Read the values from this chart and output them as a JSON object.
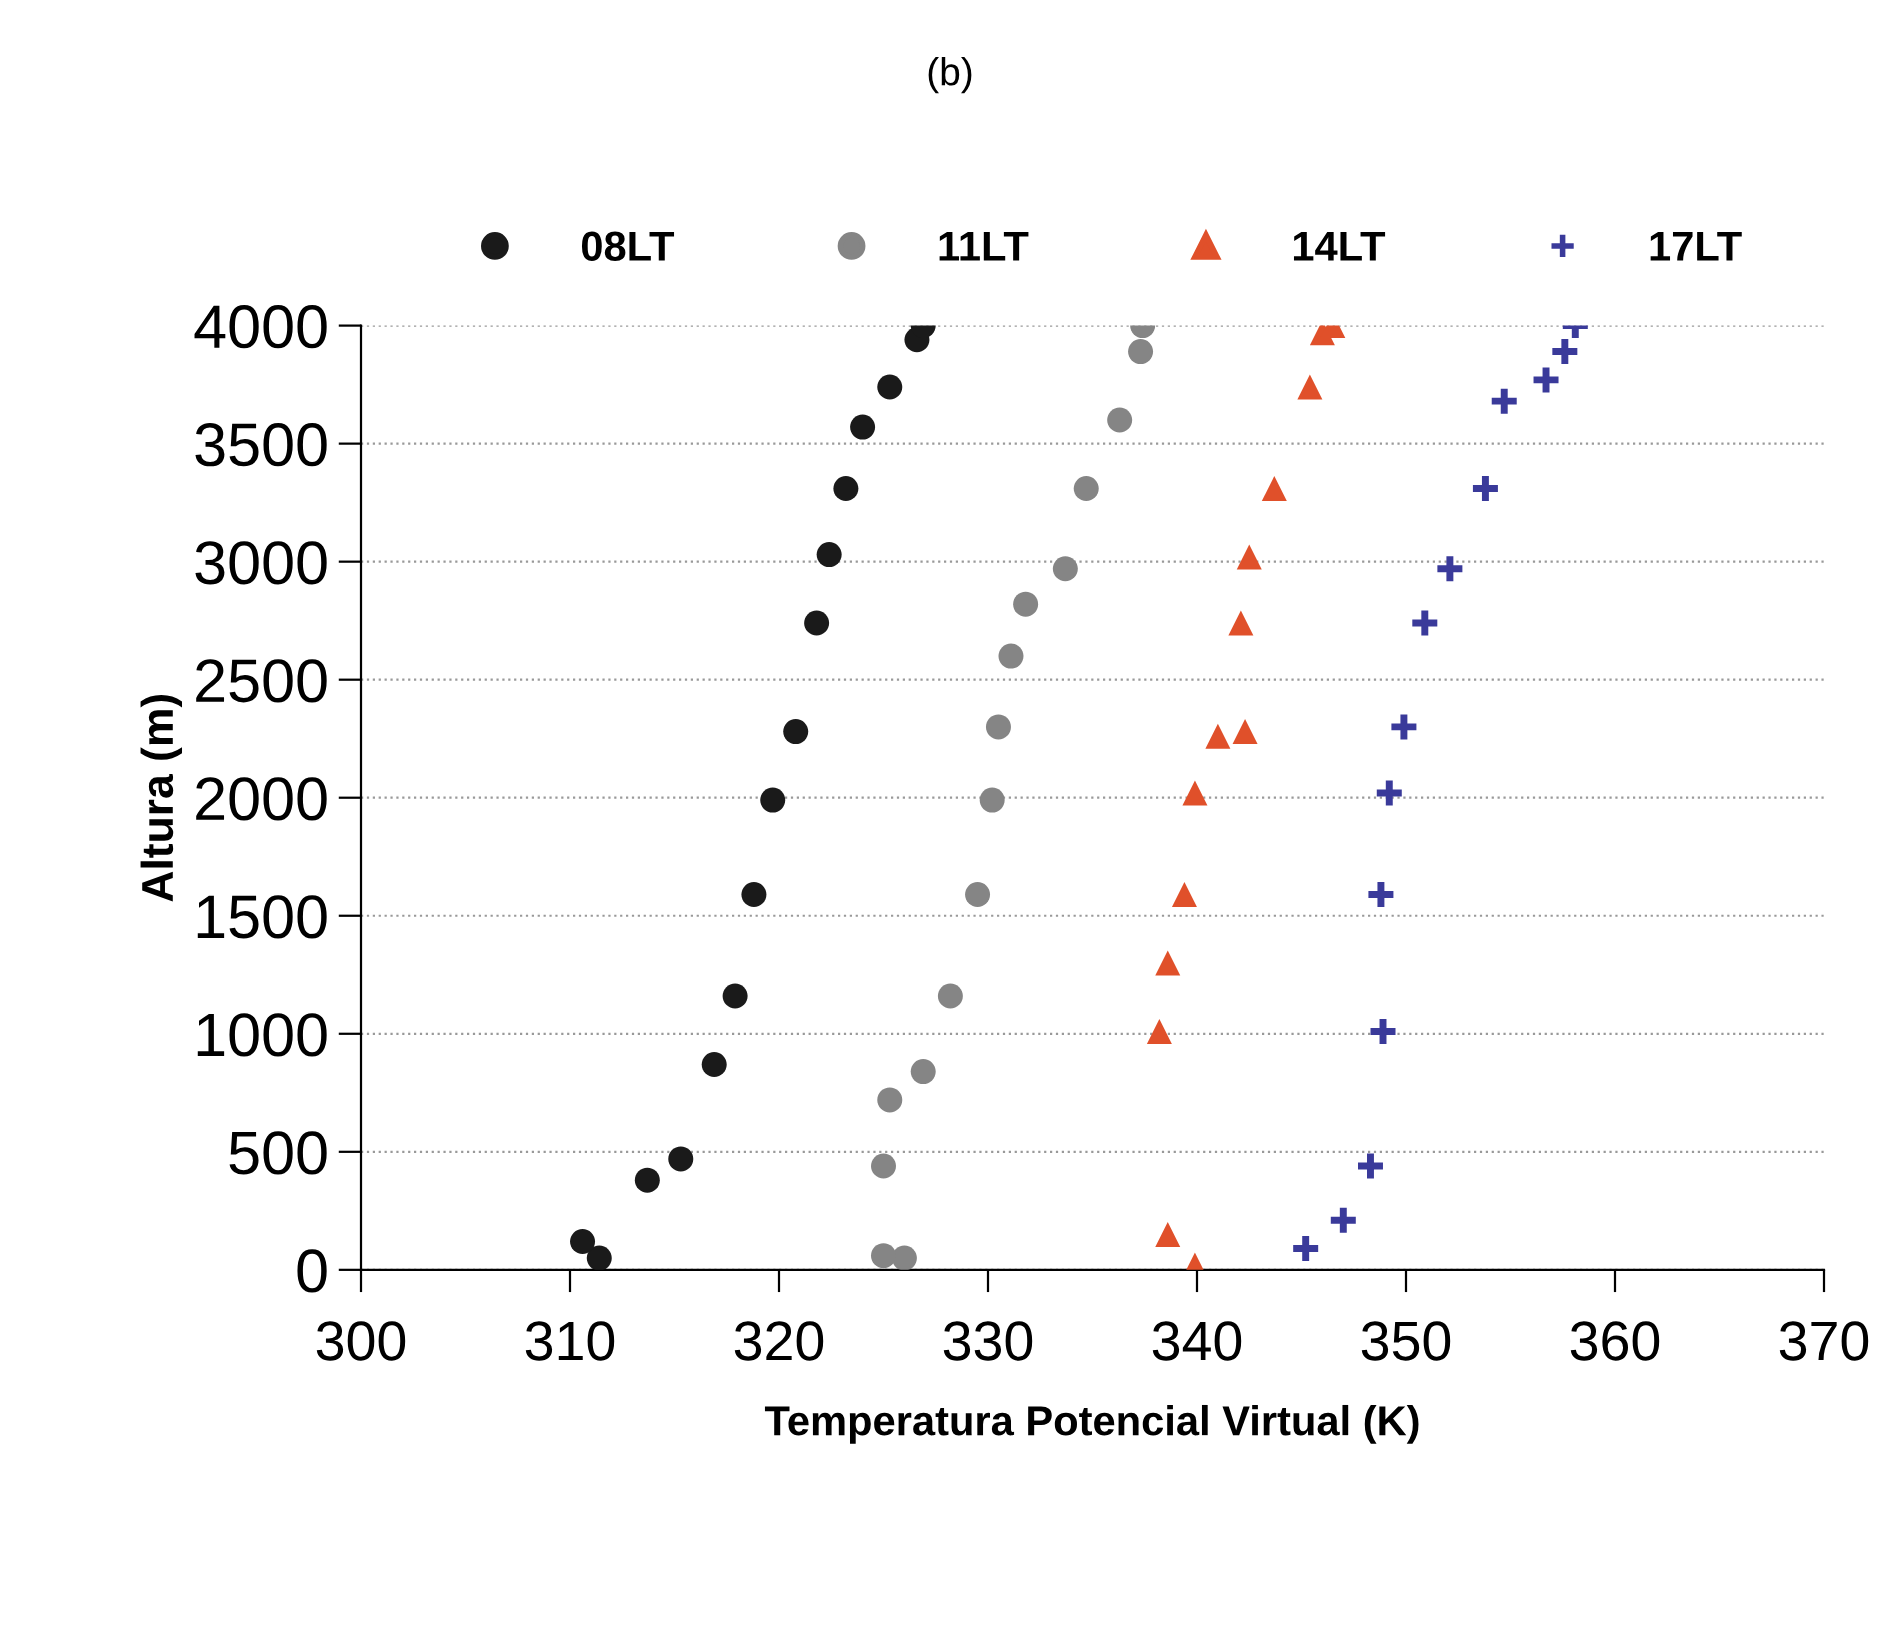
{
  "chart_data": {
    "type": "scatter",
    "title": "(b)",
    "xlabel": "Temperatura Potencial Virtual (K)",
    "ylabel": "Altura (m)",
    "xlim": [
      300,
      370
    ],
    "ylim": [
      0,
      4000
    ],
    "xticks": [
      300,
      310,
      320,
      330,
      340,
      350,
      360,
      370
    ],
    "yticks": [
      0,
      500,
      1000,
      1500,
      2000,
      2500,
      3000,
      3500,
      4000
    ],
    "grid": "y",
    "legend": "top",
    "series": [
      {
        "name": "08LT",
        "color": "#1a1a1a",
        "marker": "circle",
        "x": [
          311.4,
          310.6,
          313.7,
          315.3,
          316.9,
          317.9,
          318.8,
          319.7,
          320.8,
          321.8,
          322.4,
          323.2,
          324.0,
          325.3,
          326.6,
          326.9
        ],
        "values": [
          50,
          120,
          380,
          470,
          870,
          1160,
          1590,
          1990,
          2280,
          2740,
          3030,
          3310,
          3570,
          3740,
          3940,
          4000
        ]
      },
      {
        "name": "11LT",
        "color": "#858585",
        "marker": "circle",
        "x": [
          326.0,
          325.0,
          325.0,
          325.3,
          326.9,
          328.2,
          329.5,
          330.2,
          330.5,
          331.1,
          331.8,
          333.7,
          334.7,
          336.3,
          337.3,
          337.4
        ],
        "values": [
          50,
          60,
          440,
          720,
          840,
          1160,
          1590,
          1990,
          2300,
          2600,
          2820,
          2970,
          3310,
          3600,
          3890,
          4000
        ]
      },
      {
        "name": "14LT",
        "color": "#e0502a",
        "marker": "triangle",
        "x": [
          339.9,
          338.6,
          338.2,
          338.6,
          339.4,
          339.9,
          341.0,
          342.3,
          342.1,
          342.5,
          343.7,
          345.4,
          346.0,
          346.5
        ],
        "values": [
          20,
          150,
          1010,
          1300,
          1590,
          2020,
          2260,
          2280,
          2740,
          3020,
          3310,
          3740,
          3970,
          4000
        ]
      },
      {
        "name": "17LT",
        "color": "#3a3a9a",
        "marker": "cross",
        "x": [
          345.2,
          347.0,
          348.3,
          348.9,
          348.8,
          349.2,
          349.9,
          350.9,
          352.1,
          353.8,
          354.7,
          356.7,
          357.6,
          358.1
        ],
        "values": [
          90,
          210,
          440,
          1010,
          1590,
          2020,
          2300,
          2740,
          2970,
          3310,
          3680,
          3770,
          3890,
          4000
        ]
      }
    ]
  }
}
